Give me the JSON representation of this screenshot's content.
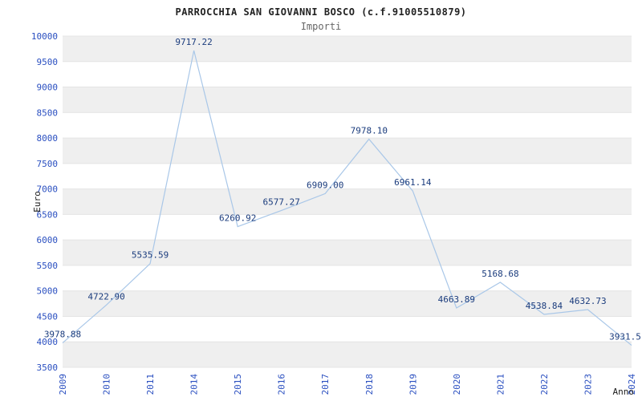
{
  "chart_data": {
    "type": "line",
    "title": "PARROCCHIA SAN GIOVANNI BOSCO (c.f.91005510879)",
    "subtitle": "Importi",
    "xlabel": "Anno",
    "ylabel": "Euro",
    "categories": [
      "2009",
      "2010",
      "2011",
      "2014",
      "2015",
      "2016",
      "2017",
      "2018",
      "2019",
      "2020",
      "2021",
      "2022",
      "2023",
      "2024"
    ],
    "values": [
      3978.88,
      4722.9,
      5535.59,
      9717.22,
      6260.92,
      6577.27,
      6909.0,
      7978.1,
      6961.14,
      4663.89,
      5168.68,
      4538.84,
      4632.73,
      3931.5
    ],
    "point_labels": [
      "3978.88",
      "4722.90",
      "5535.59",
      "9717.22",
      "6260.92",
      "6577.27",
      "6909.00",
      "7978.10",
      "6961.14",
      "4663.89",
      "5168.68",
      "4538.84",
      "4632.73",
      "3931.5"
    ],
    "ylim": [
      3500,
      10000
    ],
    "ytick_step": 500,
    "grid": "horizontal-alternating-bands",
    "legend": "none",
    "colors": {
      "line": "#a9c7e8",
      "band": "#efefef",
      "plot_bg": "#ffffff",
      "gridline": "#e4e4e4",
      "tick_label": "#2a4fc0",
      "data_label": "#1b3c7d",
      "axis_label": "#1a1a1a"
    }
  }
}
